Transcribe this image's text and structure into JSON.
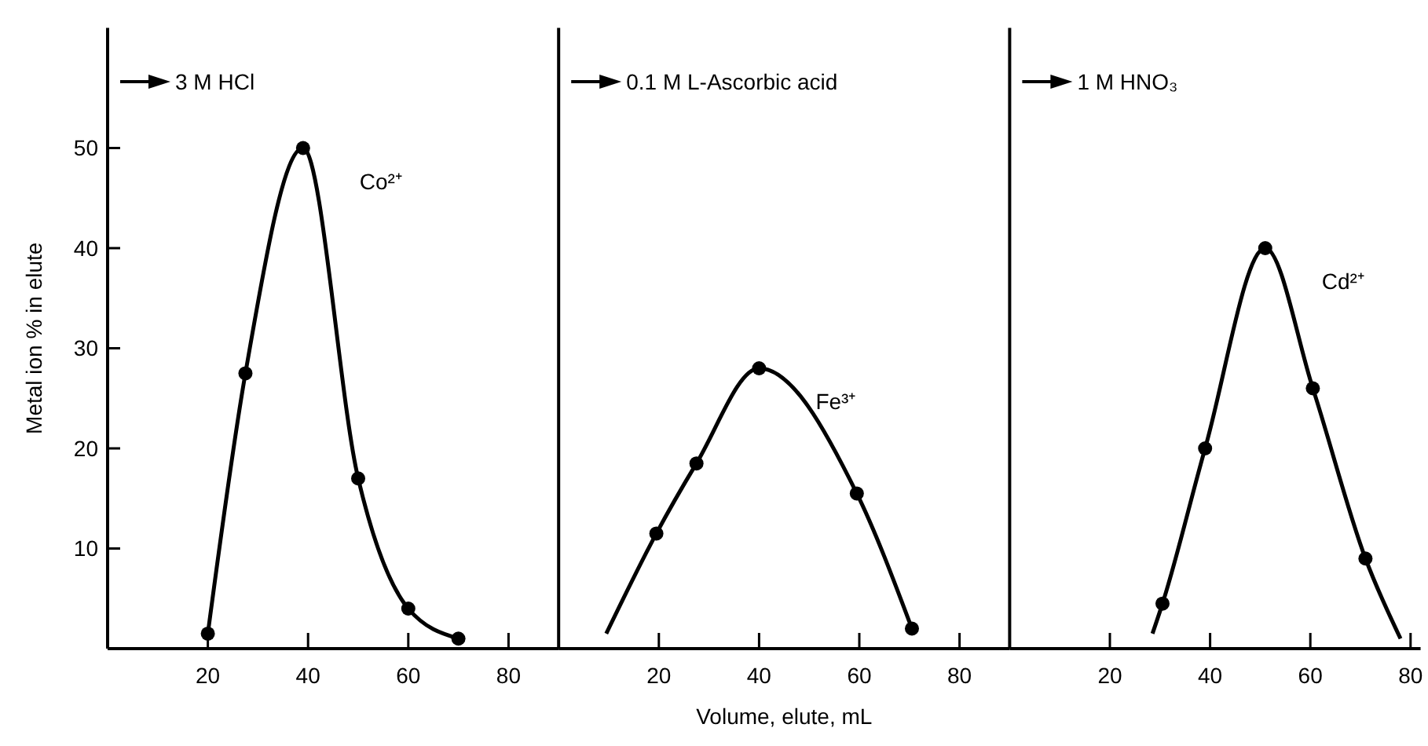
{
  "chart_data": [
    {
      "type": "scatter",
      "title": "3 M HCl",
      "ylabel": "Metal ion % in elute",
      "xlim": [
        0,
        90
      ],
      "xticks": [
        20,
        40,
        60,
        80
      ],
      "ylim": [
        0,
        62
      ],
      "yticks": [
        10,
        20,
        30,
        40,
        50
      ],
      "grid": false,
      "series": [
        {
          "type": "line",
          "marker": "none",
          "color": "#000000",
          "x": [
            20,
            27.5,
            39,
            50,
            60,
            70
          ],
          "values": [
            1.5,
            27.5,
            50,
            17,
            4,
            1
          ]
        },
        {
          "name": "Co²⁺",
          "marker": "circle",
          "color": "#000000",
          "x": [
            20,
            27.5,
            39,
            50,
            60,
            70
          ],
          "values": [
            1.5,
            27.5,
            50,
            17,
            4,
            1
          ]
        }
      ]
    },
    {
      "type": "scatter",
      "title": "0.1 M L-Ascorbic acid",
      "xlabel": "Volume, elute, mL",
      "xlim": [
        0,
        90
      ],
      "xticks": [
        20,
        40,
        60,
        80
      ],
      "ylim": [
        0,
        62
      ],
      "tick_labels": "x",
      "grid": false,
      "series": [
        {
          "type": "line",
          "marker": "none",
          "color": "#000000",
          "x": [
            9.5,
            19.5,
            27.5,
            40,
            59.5,
            70.5
          ],
          "values": [
            1.5,
            11.5,
            18.5,
            28,
            15.5,
            2
          ]
        },
        {
          "name": "Fe³⁺",
          "marker": "circle",
          "color": "#000000",
          "x": [
            19.5,
            27.5,
            40,
            59.5,
            70.5
          ],
          "values": [
            11.5,
            18.5,
            28,
            15.5,
            2
          ]
        }
      ]
    },
    {
      "type": "scatter",
      "title": "1 M HNO₃",
      "xlim": [
        0,
        82
      ],
      "xticks": [
        20,
        40,
        60,
        80
      ],
      "ylim": [
        0,
        62
      ],
      "tick_labels": "x",
      "grid": false,
      "series": [
        {
          "type": "line",
          "marker": "none",
          "color": "#000000",
          "x": [
            28.5,
            30.5,
            39,
            51,
            60.5,
            71,
            78
          ],
          "values": [
            1.5,
            4.5,
            20,
            40,
            26,
            9,
            1
          ]
        },
        {
          "name": "Cd²⁺",
          "marker": "circle",
          "color": "#000000",
          "x": [
            30.5,
            39,
            51,
            60.5,
            71
          ],
          "values": [
            4.5,
            20,
            40,
            26,
            9
          ]
        }
      ]
    }
  ]
}
